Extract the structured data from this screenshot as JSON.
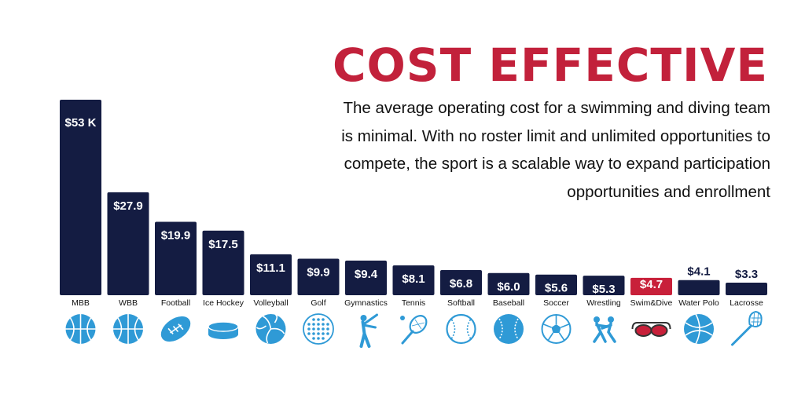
{
  "title": "COST EFFECTIVE",
  "description": "The average operating cost for a swimming and diving team is minimal.  With no roster limit and unlimited opportunities to compete, the sport is a scalable way to expand participation opportunities and enrollment",
  "colors": {
    "bar": "#141c42",
    "highlight": "#c8203a",
    "icon": "#2f9ad6",
    "title": "#c2213b"
  },
  "chart_data": {
    "type": "bar",
    "categories": [
      "MBB",
      "WBB",
      "Football",
      "Ice Hockey",
      "Volleyball",
      "Golf",
      "Gymnastics",
      "Tennis",
      "Softball",
      "Baseball",
      "Soccer",
      "Wrestling",
      "Swim&Dive",
      "Water Polo",
      "Lacrosse"
    ],
    "values": [
      53,
      27.9,
      19.9,
      17.5,
      11.1,
      9.9,
      9.4,
      8.1,
      6.8,
      6.0,
      5.6,
      5.3,
      4.7,
      4.1,
      3.3
    ],
    "data_labels": [
      "$53 K",
      "$27.9",
      "$19.9",
      "$17.5",
      "$11.1",
      "$9.9",
      "$9.4",
      "$8.1",
      "$6.8",
      "$6.0",
      "$5.6",
      "$5.3",
      "$4.7",
      "$4.1",
      "$3.3"
    ],
    "highlight": "Swim&Dive",
    "ylim": [
      0,
      53
    ],
    "grid": false,
    "icons": [
      "basketball-icon",
      "basketball-icon",
      "football-icon",
      "hockey-puck-icon",
      "volleyball-icon",
      "golf-ball-icon",
      "gymnast-icon",
      "tennis-racket-icon",
      "softball-icon",
      "baseball-icon",
      "soccer-ball-icon",
      "wrestlers-icon",
      "swim-goggles-icon",
      "water-polo-ball-icon",
      "lacrosse-stick-icon"
    ]
  }
}
